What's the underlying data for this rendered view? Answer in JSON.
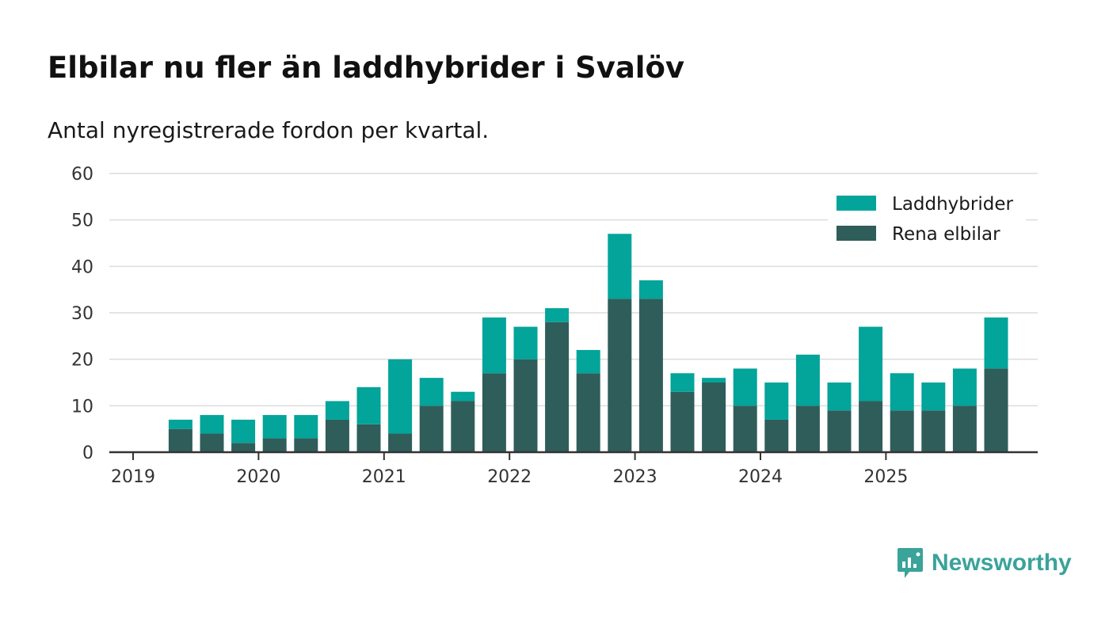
{
  "header": {
    "title": "Elbilar nu fler än laddhybrider i Svalöv",
    "subtitle": "Antal nyregistrerade fordon per kvartal."
  },
  "brand": {
    "name": "Newsworthy",
    "color": "#3aa39a"
  },
  "colors": {
    "rena_elbilar": "#2f5d5a",
    "laddhybrider": "#03a49a",
    "gridline": "#dcdcdc",
    "axis": "#333333"
  },
  "chart_data": {
    "type": "bar",
    "stacked": true,
    "title": "Elbilar nu fler än laddhybrider i Svalöv",
    "subtitle": "Antal nyregistrerade fordon per kvartal.",
    "xlabel": "",
    "ylabel": "",
    "ylim": [
      0,
      60
    ],
    "yticks": [
      0,
      10,
      20,
      30,
      40,
      50,
      60
    ],
    "xticks": [
      "2019",
      "2020",
      "2021",
      "2022",
      "2023",
      "2024",
      "2025"
    ],
    "grid": true,
    "legend_position": "top-right",
    "categories": [
      "2019 Q2",
      "2019 Q3",
      "2019 Q4",
      "2020 Q1",
      "2020 Q2",
      "2020 Q3",
      "2020 Q4",
      "2021 Q1",
      "2021 Q2",
      "2021 Q3",
      "2021 Q4",
      "2022 Q1",
      "2022 Q2",
      "2022 Q3",
      "2022 Q4",
      "2023 Q1",
      "2023 Q2",
      "2023 Q3",
      "2023 Q4",
      "2024 Q1",
      "2024 Q2",
      "2024 Q3",
      "2024 Q4",
      "2025 Q1",
      "2025 Q2",
      "2025 Q3",
      "2025 Q4"
    ],
    "series": [
      {
        "name": "Rena elbilar",
        "color": "#2f5d5a",
        "values": [
          5,
          4,
          2,
          3,
          3,
          7,
          6,
          4,
          10,
          11,
          17,
          20,
          28,
          17,
          33,
          33,
          13,
          15,
          10,
          7,
          10,
          9,
          11,
          9,
          9,
          10,
          18
        ]
      },
      {
        "name": "Laddhybrider",
        "color": "#03a49a",
        "values": [
          2,
          4,
          5,
          5,
          5,
          4,
          8,
          16,
          6,
          2,
          12,
          7,
          3,
          5,
          14,
          4,
          4,
          1,
          8,
          8,
          11,
          6,
          16,
          8,
          6,
          8,
          11
        ]
      }
    ],
    "legend": [
      "Laddhybrider",
      "Rena elbilar"
    ]
  }
}
